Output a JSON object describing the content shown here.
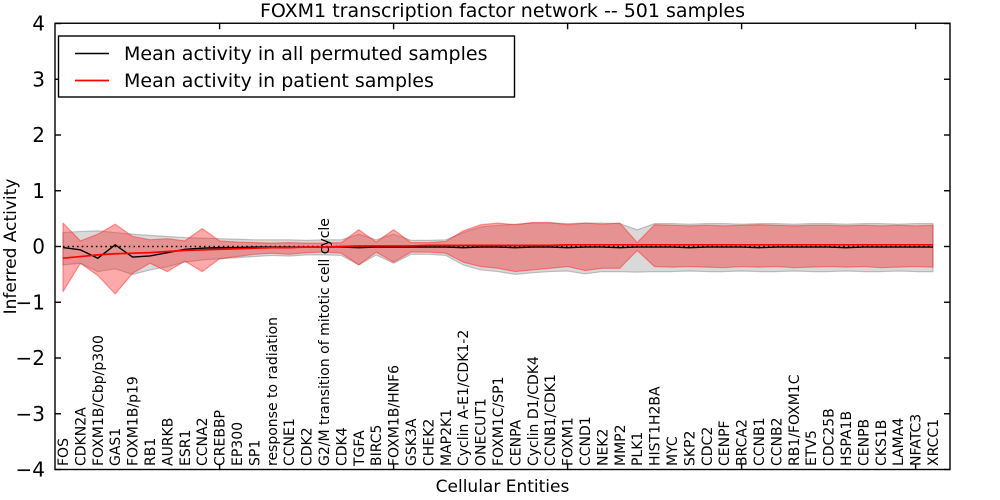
{
  "chart_data": {
    "type": "line",
    "title": "FOXM1 transcription factor network -- 501 samples",
    "xlabel": "Cellular Entities",
    "ylabel": "Inferred Activity",
    "ylim": [
      -4,
      4
    ],
    "y_tick_labels": [
      "4",
      "3",
      "2",
      "1",
      "0",
      "−1",
      "−2",
      "−3",
      "−4"
    ],
    "grid": false,
    "zero_line": "dotted",
    "legend_position": "upper left",
    "categories": [
      "FOS",
      "CDKN2A",
      "FOXM1B/Cbp/p300",
      "GAS1",
      "FOXM1B/p19",
      "RB1",
      "AURKB",
      "ESR1",
      "CCNA2",
      "CREBBP",
      "EP300",
      "SP1",
      "response to radiation",
      "CCNE1",
      "CDK2",
      "G2/M transition of mitotic cell cycle",
      "CDK4",
      "TGFA",
      "BIRC5",
      "FOXM1B/HNF6",
      "GSK3A",
      "CHEK2",
      "MAP2K1",
      "Cyclin A-E1/CDK1-2",
      "ONECUT1",
      "FOXM1C/SP1",
      "CENPA",
      "Cyclin D1/CDK4",
      "CCNB1/CDK1",
      "FOXM1",
      "CCND1",
      "NEK2",
      "MMP2",
      "PLK1",
      "HIST1H2BA",
      "MYC",
      "SKP2",
      "CDC2",
      "CENPF",
      "BRCA2",
      "CCNB1",
      "CCNB2",
      "RB1/FOXM1C",
      "ETV5",
      "CDC25B",
      "HSPA1B",
      "CENPB",
      "CKS1B",
      "LAMA4",
      "NFATC3",
      "XRCC1"
    ],
    "series": [
      {
        "name": "Mean activity in all permuted samples",
        "color": "#000000",
        "values": [
          -0.02,
          -0.06,
          -0.21,
          0.03,
          -0.19,
          -0.17,
          -0.11,
          -0.05,
          -0.03,
          -0.02,
          -0.02,
          -0.01,
          -0.01,
          -0.01,
          -0.01,
          -0.01,
          -0.01,
          -0.02,
          -0.01,
          -0.01,
          -0.01,
          -0.01,
          -0.01,
          -0.02,
          -0.01,
          -0.01,
          -0.02,
          -0.01,
          -0.01,
          -0.02,
          -0.01,
          -0.01,
          -0.02,
          -0.01,
          -0.01,
          -0.01,
          -0.02,
          -0.01,
          -0.01,
          -0.01,
          -0.02,
          -0.01,
          -0.01,
          -0.01,
          -0.01,
          -0.02,
          -0.01,
          -0.01,
          -0.01,
          -0.01,
          -0.01
        ]
      },
      {
        "name": "Mean activity in patient samples",
        "color": "#ff0000",
        "values": [
          -0.21,
          -0.18,
          -0.15,
          -0.13,
          -0.12,
          -0.11,
          -0.09,
          -0.07,
          -0.06,
          -0.05,
          -0.04,
          -0.03,
          -0.02,
          -0.02,
          -0.01,
          -0.01,
          0.0,
          0.01,
          0.01,
          0.01,
          0.01,
          0.02,
          0.02,
          0.02,
          0.02,
          0.02,
          0.02,
          0.02,
          0.02,
          0.03,
          0.03,
          0.03,
          0.03,
          0.03,
          0.03,
          0.03,
          0.03,
          0.03,
          0.03,
          0.03,
          0.03,
          0.03,
          0.03,
          0.03,
          0.03,
          0.03,
          0.03,
          0.03,
          0.03,
          0.03,
          0.03
        ]
      }
    ],
    "bands": [
      {
        "name": "permuted samples std band",
        "color": "#808080",
        "upper": [
          0.25,
          0.27,
          0.28,
          0.25,
          0.22,
          0.2,
          0.18,
          0.16,
          0.15,
          0.14,
          0.13,
          0.12,
          0.12,
          0.12,
          0.11,
          0.12,
          0.12,
          0.22,
          0.12,
          0.22,
          0.11,
          0.11,
          0.12,
          0.25,
          0.35,
          0.38,
          0.4,
          0.42,
          0.42,
          0.41,
          0.42,
          0.42,
          0.41,
          0.3,
          0.41,
          0.41,
          0.4,
          0.41,
          0.41,
          0.4,
          0.41,
          0.41,
          0.4,
          0.41,
          0.41,
          0.4,
          0.41,
          0.41,
          0.4,
          0.41,
          0.41
        ],
        "lower": [
          -0.33,
          -0.3,
          -0.45,
          -0.4,
          -0.5,
          -0.42,
          -0.36,
          -0.28,
          -0.24,
          -0.22,
          -0.2,
          -0.18,
          -0.16,
          -0.17,
          -0.15,
          -0.15,
          -0.16,
          -0.33,
          -0.15,
          -0.3,
          -0.14,
          -0.14,
          -0.16,
          -0.33,
          -0.42,
          -0.45,
          -0.5,
          -0.47,
          -0.45,
          -0.44,
          -0.49,
          -0.45,
          -0.45,
          -0.46,
          -0.45,
          -0.45,
          -0.44,
          -0.45,
          -0.45,
          -0.44,
          -0.45,
          -0.45,
          -0.44,
          -0.45,
          -0.45,
          -0.44,
          -0.45,
          -0.45,
          -0.44,
          -0.45,
          -0.45
        ]
      },
      {
        "name": "patient samples std band",
        "color": "#ff2020",
        "upper": [
          0.42,
          0.1,
          0.22,
          0.4,
          0.18,
          0.12,
          0.14,
          0.1,
          0.32,
          0.1,
          0.08,
          0.07,
          0.06,
          0.07,
          0.06,
          0.06,
          0.07,
          0.3,
          0.08,
          0.3,
          0.07,
          0.07,
          0.09,
          0.28,
          0.39,
          0.42,
          0.39,
          0.43,
          0.43,
          0.39,
          0.42,
          0.4,
          0.42,
          0.07,
          0.39,
          0.38,
          0.37,
          0.38,
          0.37,
          0.38,
          0.39,
          0.38,
          0.37,
          0.38,
          0.38,
          0.37,
          0.38,
          0.37,
          0.38,
          0.37,
          0.38
        ],
        "lower": [
          -0.81,
          -0.3,
          -0.52,
          -0.85,
          -0.48,
          -0.3,
          -0.45,
          -0.26,
          -0.45,
          -0.22,
          -0.18,
          -0.14,
          -0.12,
          -0.14,
          -0.11,
          -0.1,
          -0.12,
          -0.33,
          -0.1,
          -0.28,
          -0.1,
          -0.1,
          -0.12,
          -0.28,
          -0.36,
          -0.39,
          -0.45,
          -0.42,
          -0.39,
          -0.36,
          -0.43,
          -0.39,
          -0.39,
          -0.07,
          -0.36,
          -0.37,
          -0.36,
          -0.37,
          -0.38,
          -0.36,
          -0.37,
          -0.36,
          -0.38,
          -0.37,
          -0.36,
          -0.37,
          -0.36,
          -0.38,
          -0.37,
          -0.36,
          -0.37
        ]
      }
    ]
  }
}
